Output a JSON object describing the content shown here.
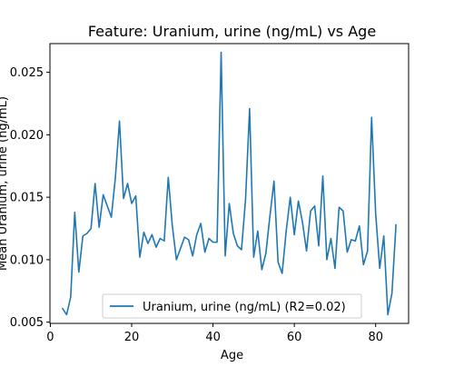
{
  "chart_data": {
    "type": "line",
    "title": "Feature: Uranium, urine (ng/mL) vs Age",
    "xlabel": "Age",
    "ylabel": "Mean Uranium, urine (ng/mL)",
    "xlim": [
      -0.1,
      88.1
    ],
    "ylim": [
      0.0049,
      0.0273
    ],
    "x_ticks": [
      0,
      20,
      40,
      60,
      80
    ],
    "y_ticks": [
      0.005,
      0.01,
      0.015,
      0.02,
      0.025
    ],
    "x_tick_labels": [
      "0",
      "20",
      "40",
      "60",
      "80"
    ],
    "y_tick_labels": [
      "0.005",
      "0.010",
      "0.015",
      "0.020",
      "0.025"
    ],
    "grid": false,
    "legend_position": "lower center",
    "series": [
      {
        "name": "Uranium, urine (ng/mL) (R2=0.02)",
        "color": "#1f77b4",
        "x": [
          3,
          4,
          5,
          6,
          7,
          8,
          9,
          10,
          11,
          12,
          13,
          14,
          15,
          16,
          17,
          18,
          19,
          20,
          21,
          22,
          23,
          24,
          25,
          26,
          27,
          28,
          29,
          30,
          31,
          32,
          33,
          34,
          35,
          36,
          37,
          38,
          39,
          40,
          41,
          42,
          43,
          44,
          45,
          46,
          47,
          48,
          49,
          50,
          51,
          52,
          53,
          54,
          55,
          56,
          57,
          58,
          59,
          60,
          61,
          62,
          63,
          64,
          65,
          66,
          67,
          68,
          69,
          70,
          71,
          72,
          73,
          74,
          75,
          76,
          77,
          78,
          79,
          80,
          81,
          82,
          83,
          84,
          85
        ],
        "y": [
          0.0061,
          0.0056,
          0.007,
          0.0138,
          0.009,
          0.0119,
          0.0121,
          0.0125,
          0.0161,
          0.0126,
          0.0152,
          0.0143,
          0.0134,
          0.0166,
          0.0211,
          0.0149,
          0.0161,
          0.0145,
          0.0151,
          0.0102,
          0.0122,
          0.0113,
          0.012,
          0.011,
          0.0117,
          0.0115,
          0.0166,
          0.0127,
          0.01,
          0.0109,
          0.0118,
          0.0116,
          0.0103,
          0.012,
          0.0129,
          0.0106,
          0.0117,
          0.0114,
          0.0114,
          0.0266,
          0.0103,
          0.0145,
          0.0121,
          0.0111,
          0.0108,
          0.0148,
          0.0221,
          0.0102,
          0.0123,
          0.0092,
          0.0105,
          0.0135,
          0.0163,
          0.0098,
          0.0089,
          0.0123,
          0.015,
          0.012,
          0.0147,
          0.013,
          0.0107,
          0.0139,
          0.0143,
          0.0111,
          0.0167,
          0.01,
          0.0117,
          0.0093,
          0.0142,
          0.0139,
          0.0106,
          0.0116,
          0.0115,
          0.0127,
          0.0096,
          0.0107,
          0.0214,
          0.0137,
          0.0093,
          0.0119,
          0.0056,
          0.0073,
          0.0128
        ]
      }
    ]
  }
}
